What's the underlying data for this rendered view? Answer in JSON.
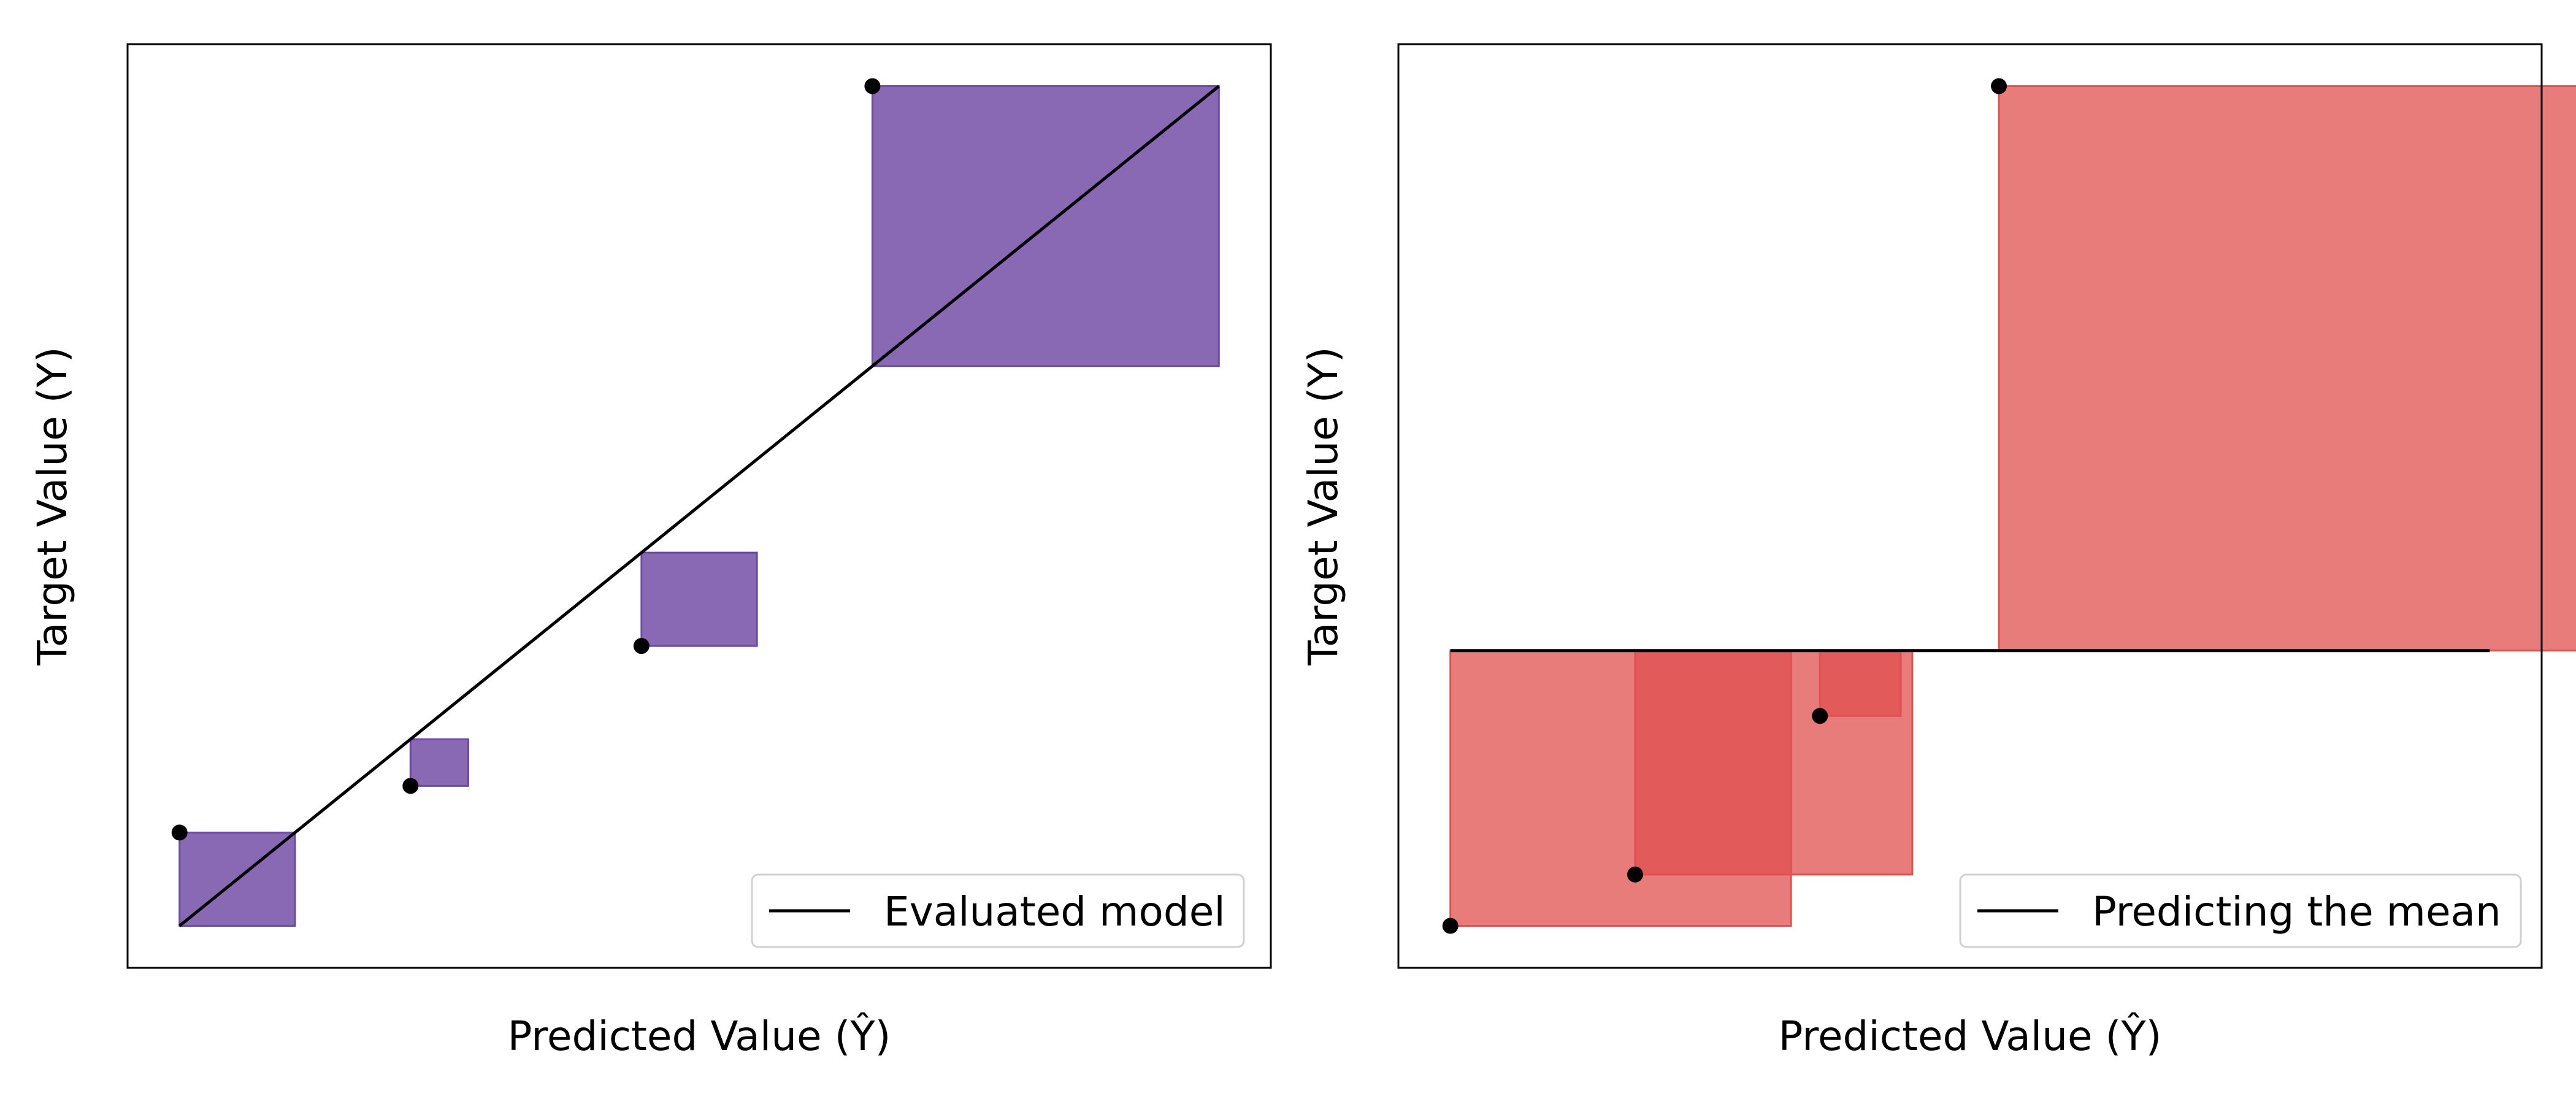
{
  "chart_data": [
    {
      "type": "scatter",
      "title": "",
      "xlabel": "Predicted Value (Ŷ)",
      "ylabel": "Target Value (Y)",
      "legend": {
        "label": "Evaluated model",
        "placement": "bottom-right"
      },
      "xlim": [
        0.55,
        10.45
      ],
      "ylim": [
        0.55,
        10.45
      ],
      "points": [
        {
          "x": 1,
          "y": 2
        },
        {
          "x": 3,
          "y": 2.5
        },
        {
          "x": 5,
          "y": 4
        },
        {
          "x": 7,
          "y": 10
        }
      ],
      "reference_line": {
        "type": "model",
        "x": [
          1,
          10
        ],
        "y": [
          1,
          10
        ]
      },
      "squared_error_boxes": true,
      "colors": {
        "box_fill": "#8a69b4",
        "box_edge": "#6a4aa5",
        "line": "#000000",
        "point": "#000000"
      }
    },
    {
      "type": "scatter",
      "title": "",
      "xlabel": "Predicted Value (Ŷ)",
      "ylabel": "Target Value (Y)",
      "legend": {
        "label": "Predicting the mean",
        "placement": "bottom-right"
      },
      "xlim": [
        0.55,
        10.45
      ],
      "ylim": [
        0.55,
        10.45
      ],
      "points": [
        {
          "x": 1,
          "y": 1
        },
        {
          "x": 2.6,
          "y": 1.55
        },
        {
          "x": 4.2,
          "y": 3.25
        },
        {
          "x": 5.75,
          "y": 10
        }
      ],
      "reference_line": {
        "type": "mean",
        "x": [
          1,
          10
        ],
        "y": [
          3.95,
          3.95
        ]
      },
      "squared_error_boxes": true,
      "colors": {
        "box_fill": "#e0504f",
        "box_edge": "#e0504f",
        "line": "#000000",
        "point": "#000000"
      }
    }
  ]
}
